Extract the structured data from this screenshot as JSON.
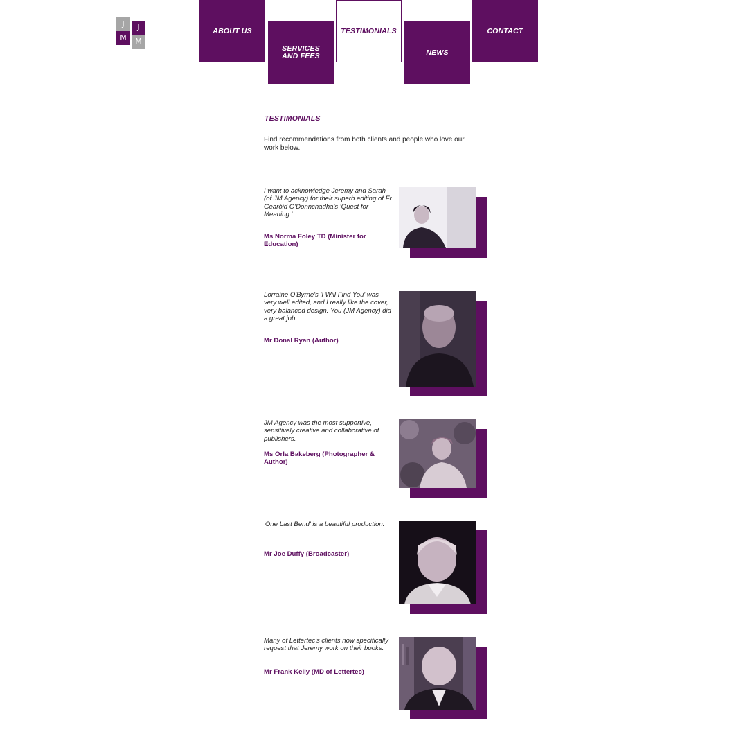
{
  "logo": {
    "letters": [
      "J",
      "J",
      "M",
      "M"
    ]
  },
  "nav": {
    "about": "ABOUT US",
    "services_line1": "SERVICES",
    "services_line2": "AND FEES",
    "testimonials": "TESTIMONIALS",
    "news": "NEWS",
    "contact": "CONTACT"
  },
  "page": {
    "heading": "TESTIMONIALS",
    "intro": "Find recommendations from both clients and people who love our work below."
  },
  "testimonials": [
    {
      "quote": "I want to acknowledge Jeremy and Sarah (of JM Agency) for their superb editing of Fr Gearóid O'Donnchadha's 'Quest for Meaning.'",
      "author": "Ms Norma Foley TD (Minister for Education)"
    },
    {
      "quote": "Lorraine O'Byrne's 'I Will Find You' was very well edited, and I really like the cover, very balanced design. You (JM Agency) did a great job.",
      "author": "Mr Donal Ryan (Author)"
    },
    {
      "quote": "JM Agency was the most supportive, sensitively creative and collaborative of publishers.",
      "author": "Ms Orla Bakeberg (Photographer & Author)"
    },
    {
      "quote": "'One Last Bend' is a beautiful production.",
      "author": "Mr Joe Duffy (Broadcaster)"
    },
    {
      "quote": "Many of Lettertec's clients now specifically request that Jeremy work on their books.",
      "author": "Mr Frank Kelly (MD of Lettertec)"
    }
  ],
  "colors": {
    "brand": "#5e0f60",
    "logo_grey": "#a6a6a6"
  }
}
